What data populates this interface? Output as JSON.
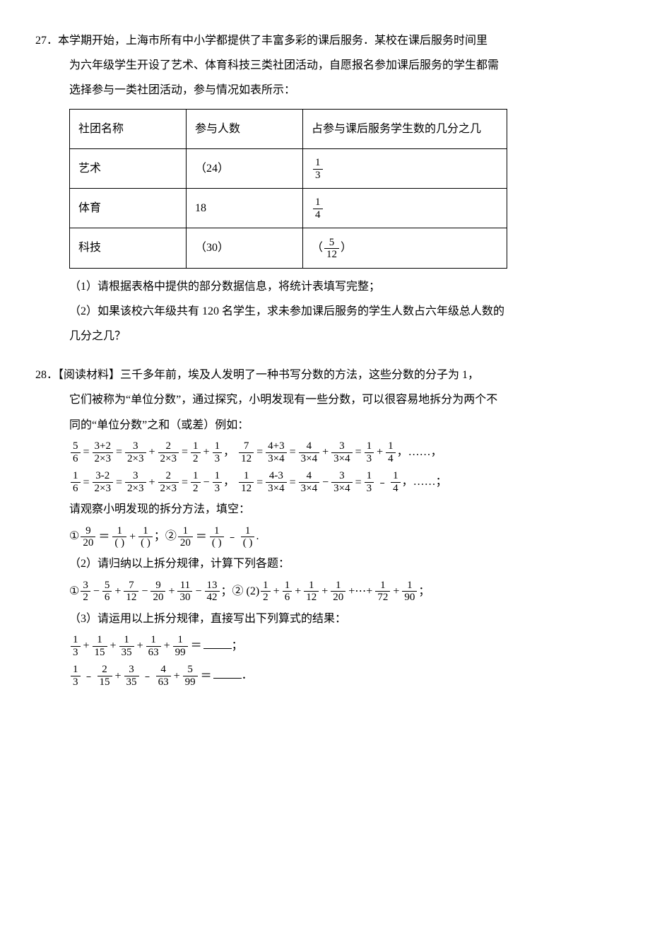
{
  "problem27": {
    "num": "27．",
    "text_line1": "本学期开始，上海市所有中小学都提供了丰富多彩的课后服务．某校在课后服务时间里",
    "text_line2": "为六年级学生开设了艺术、体育科技三类社团活动，自愿报名参加课后服务的学生都需",
    "text_line3": "选择参与一类社团活动，参与情况如表所示：",
    "table": {
      "headers": [
        "社团名称",
        "参与人数",
        "占参与课后服务学生数的几分之几"
      ],
      "rows": [
        {
          "name": "艺术",
          "count": "（24）",
          "frac_num": "1",
          "frac_den": "3"
        },
        {
          "name": "体育",
          "count": "18",
          "frac_num": "1",
          "frac_den": "4"
        },
        {
          "name": "科技",
          "count": "（30）",
          "frac_num": "5",
          "frac_den": "12",
          "paren": true
        }
      ]
    },
    "sub1": "（1）请根据表格中提供的部分数据信息，将统计表填写完整；",
    "sub2a": "（2）如果该校六年级共有 120 名学生，求未参加课后服务的学生人数占六年级总人数的",
    "sub2b": "几分之几？"
  },
  "problem28": {
    "num": "28．",
    "text_line1": "【阅读材料】三千多年前，埃及人发明了一种书写分数的方法，这些分数的分子为 1，",
    "text_line2": "它们被称为“单位分数”，通过探究，小明发现有一些分数，可以很容易地拆分为两个不",
    "text_line3": "同的“单位分数”之和（或差）例如：",
    "eq1": {
      "p1": {
        "n": "5",
        "d": "6"
      },
      "p2": {
        "n": "3+2",
        "d": "2×3"
      },
      "p3": {
        "n": "3",
        "d": "2×3"
      },
      "p4": {
        "n": "2",
        "d": "2×3"
      },
      "p5": {
        "n": "1",
        "d": "2"
      },
      "p6": {
        "n": "1",
        "d": "3"
      },
      "q1": {
        "n": "7",
        "d": "12"
      },
      "q2": {
        "n": "4+3",
        "d": "3×4"
      },
      "q3": {
        "n": "4",
        "d": "3×4"
      },
      "q4": {
        "n": "3",
        "d": "3×4"
      },
      "q5": {
        "n": "1",
        "d": "3"
      },
      "q6": {
        "n": "1",
        "d": "4"
      },
      "tail": "……，"
    },
    "eq2": {
      "p1": {
        "n": "1",
        "d": "6"
      },
      "p2": {
        "n": "3-2",
        "d": "2×3"
      },
      "p3": {
        "n": "3",
        "d": "2×3"
      },
      "p4": {
        "n": "2",
        "d": "2×3"
      },
      "p5": {
        "n": "1",
        "d": "2"
      },
      "p6": {
        "n": "1",
        "d": "3"
      },
      "q1": {
        "n": "1",
        "d": "12"
      },
      "q2": {
        "n": "4-3",
        "d": "3×4"
      },
      "q3": {
        "n": "4",
        "d": "3×4"
      },
      "q4": {
        "n": "3",
        "d": "3×4"
      },
      "q5": {
        "n": "1",
        "d": "3"
      },
      "q6": {
        "n": "1",
        "d": "4"
      },
      "tail": "……；"
    },
    "observe": "请观察小明发现的拆分方法，填空：",
    "fill1": {
      "lead1": "①",
      "f1": {
        "n": "9",
        "d": "20"
      },
      "f2": {
        "n": "1",
        "d": "( )"
      },
      "f3": {
        "n": "1",
        "d": "( )"
      },
      "lead2": "；②",
      "g1": {
        "n": "1",
        "d": "20"
      },
      "g2": {
        "n": "1",
        "d": "( )"
      },
      "g3": {
        "n": "1",
        "d": "( )"
      },
      "end": "."
    },
    "sub2": "（2）请归纳以上拆分规律，计算下列各题：",
    "calc1": {
      "lead1": "①",
      "t": [
        {
          "n": "3",
          "d": "2"
        },
        {
          "op": "−",
          "n": "5",
          "d": "6"
        },
        {
          "op": "+",
          "n": "7",
          "d": "12"
        },
        {
          "op": "−",
          "n": "9",
          "d": "20"
        },
        {
          "op": "+",
          "n": "11",
          "d": "30"
        },
        {
          "op": "−",
          "n": "13",
          "d": "42"
        }
      ],
      "lead2": "；② (2)",
      "u": [
        {
          "n": "1",
          "d": "2"
        },
        {
          "op": "+",
          "n": "1",
          "d": "6"
        },
        {
          "op": "+",
          "n": "1",
          "d": "12"
        },
        {
          "op": "+",
          "n": "1",
          "d": "20"
        },
        {
          "op": "+⋯+",
          "n": "1",
          "d": "72"
        },
        {
          "op": "+",
          "n": "1",
          "d": "90"
        }
      ],
      "end": "；"
    },
    "sub3": "（3）请运用以上拆分规律，直接写出下列算式的结果：",
    "res1": {
      "t": [
        {
          "n": "1",
          "d": "3"
        },
        {
          "op": "+",
          "n": "1",
          "d": "15"
        },
        {
          "op": "+",
          "n": "1",
          "d": "35"
        },
        {
          "op": "+",
          "n": "1",
          "d": "63"
        },
        {
          "op": "+",
          "n": "1",
          "d": "99"
        }
      ],
      "eq": "＝",
      "end": "；"
    },
    "res2": {
      "t": [
        {
          "n": "1",
          "d": "3"
        },
        {
          "op": "﹣",
          "n": "2",
          "d": "15"
        },
        {
          "op": "+",
          "n": "3",
          "d": "35"
        },
        {
          "op": "﹣",
          "n": "4",
          "d": "63"
        },
        {
          "op": "+",
          "n": "5",
          "d": "99"
        }
      ],
      "eq": "＝",
      "end": "．"
    }
  }
}
